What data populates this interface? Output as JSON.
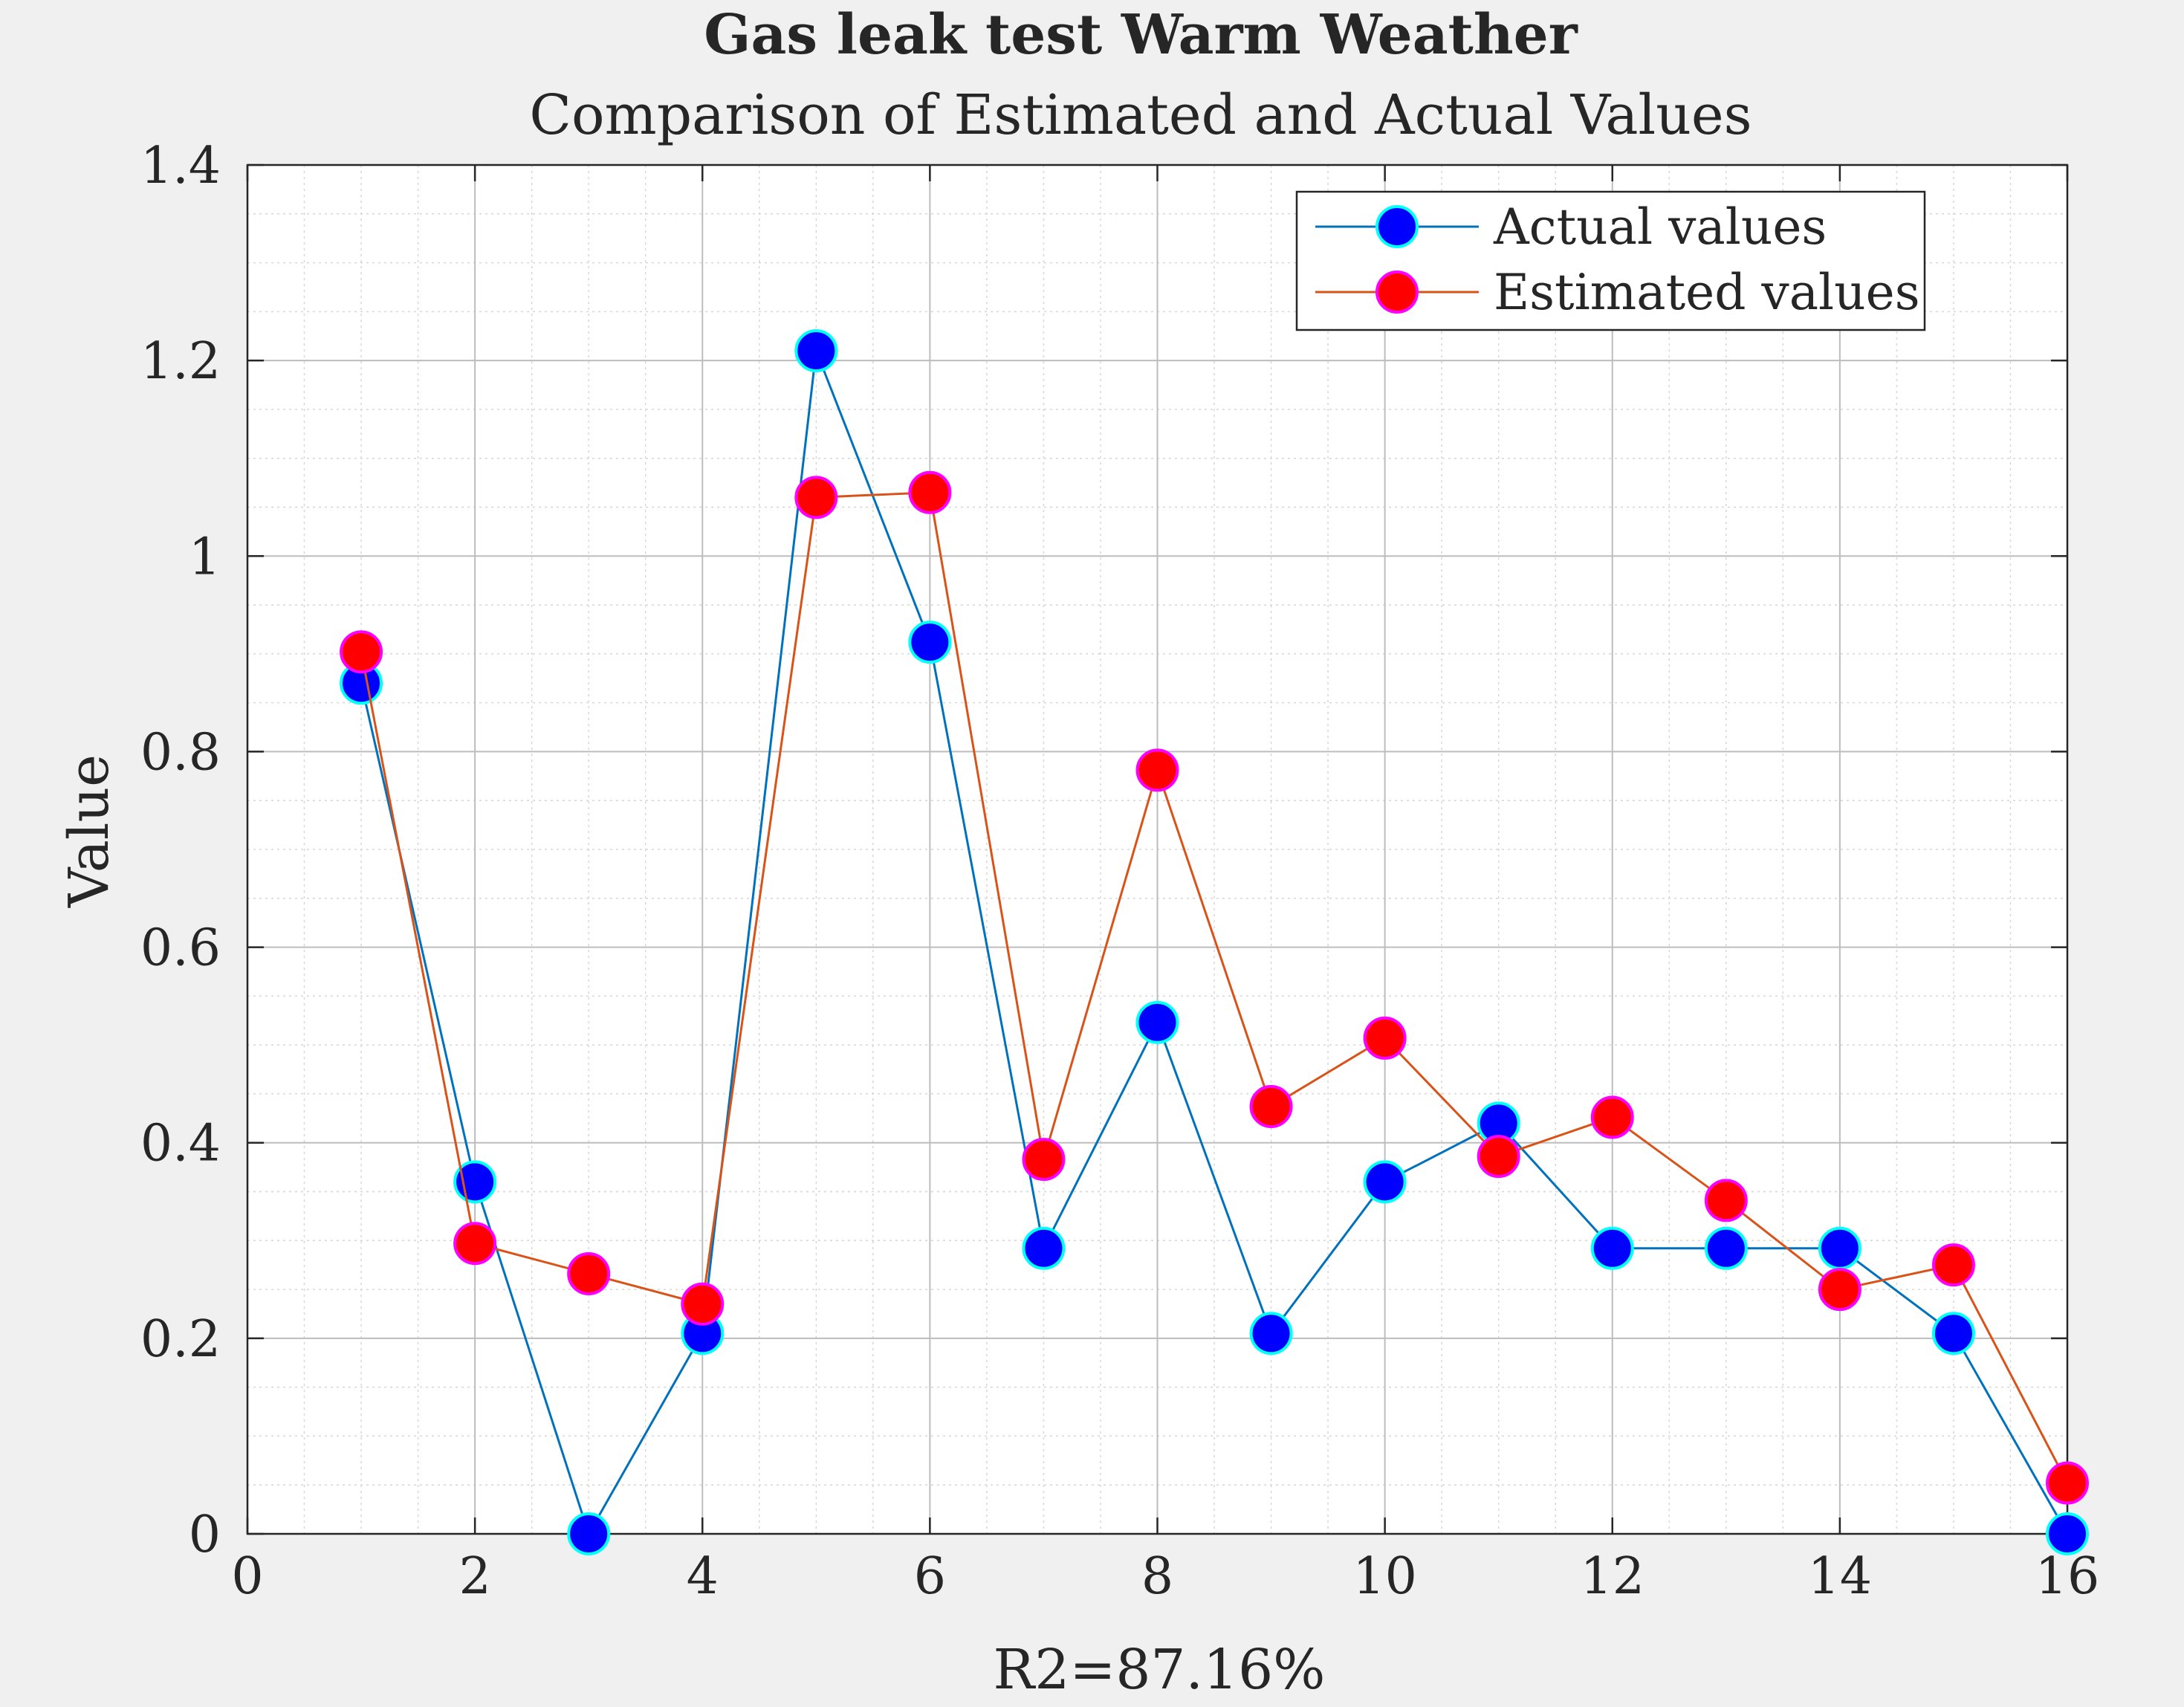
{
  "chart_data": {
    "type": "line",
    "title": "Gas leak test Warm Weather",
    "subtitle": "Comparison of Estimated and Actual Values",
    "xlabel": "R2=87.16%",
    "ylabel": "Value",
    "xlim": [
      0,
      16
    ],
    "ylim": [
      0,
      1.4
    ],
    "xticks": [
      "0",
      "2",
      "4",
      "6",
      "8",
      "10",
      "12",
      "14",
      "16"
    ],
    "yticks": [
      "0",
      "0.2",
      "0.4",
      "0.6",
      "0.8",
      "1",
      "1.2",
      "1.4"
    ],
    "grid": true,
    "legend_position": "top-right",
    "x": [
      1,
      2,
      3,
      4,
      5,
      6,
      7,
      8,
      9,
      10,
      11,
      12,
      13,
      14,
      15,
      16
    ],
    "series": [
      {
        "name": "Actual values",
        "line_color": "#0072BD",
        "marker_color": "#0000FF",
        "marker_edge": "#00FFFF",
        "values": [
          0.87,
          0.36,
          0.0,
          0.205,
          1.21,
          0.912,
          0.292,
          0.523,
          0.205,
          0.36,
          0.42,
          0.292,
          0.292,
          0.292,
          0.205,
          0.0
        ]
      },
      {
        "name": "Estimated values",
        "line_color": "#D95319",
        "marker_color": "#FF0000",
        "marker_edge": "#FF00FF",
        "values": [
          0.902,
          0.297,
          0.266,
          0.235,
          1.06,
          1.065,
          0.383,
          0.781,
          0.437,
          0.507,
          0.386,
          0.426,
          0.341,
          0.25,
          0.275,
          0.052
        ]
      }
    ]
  }
}
